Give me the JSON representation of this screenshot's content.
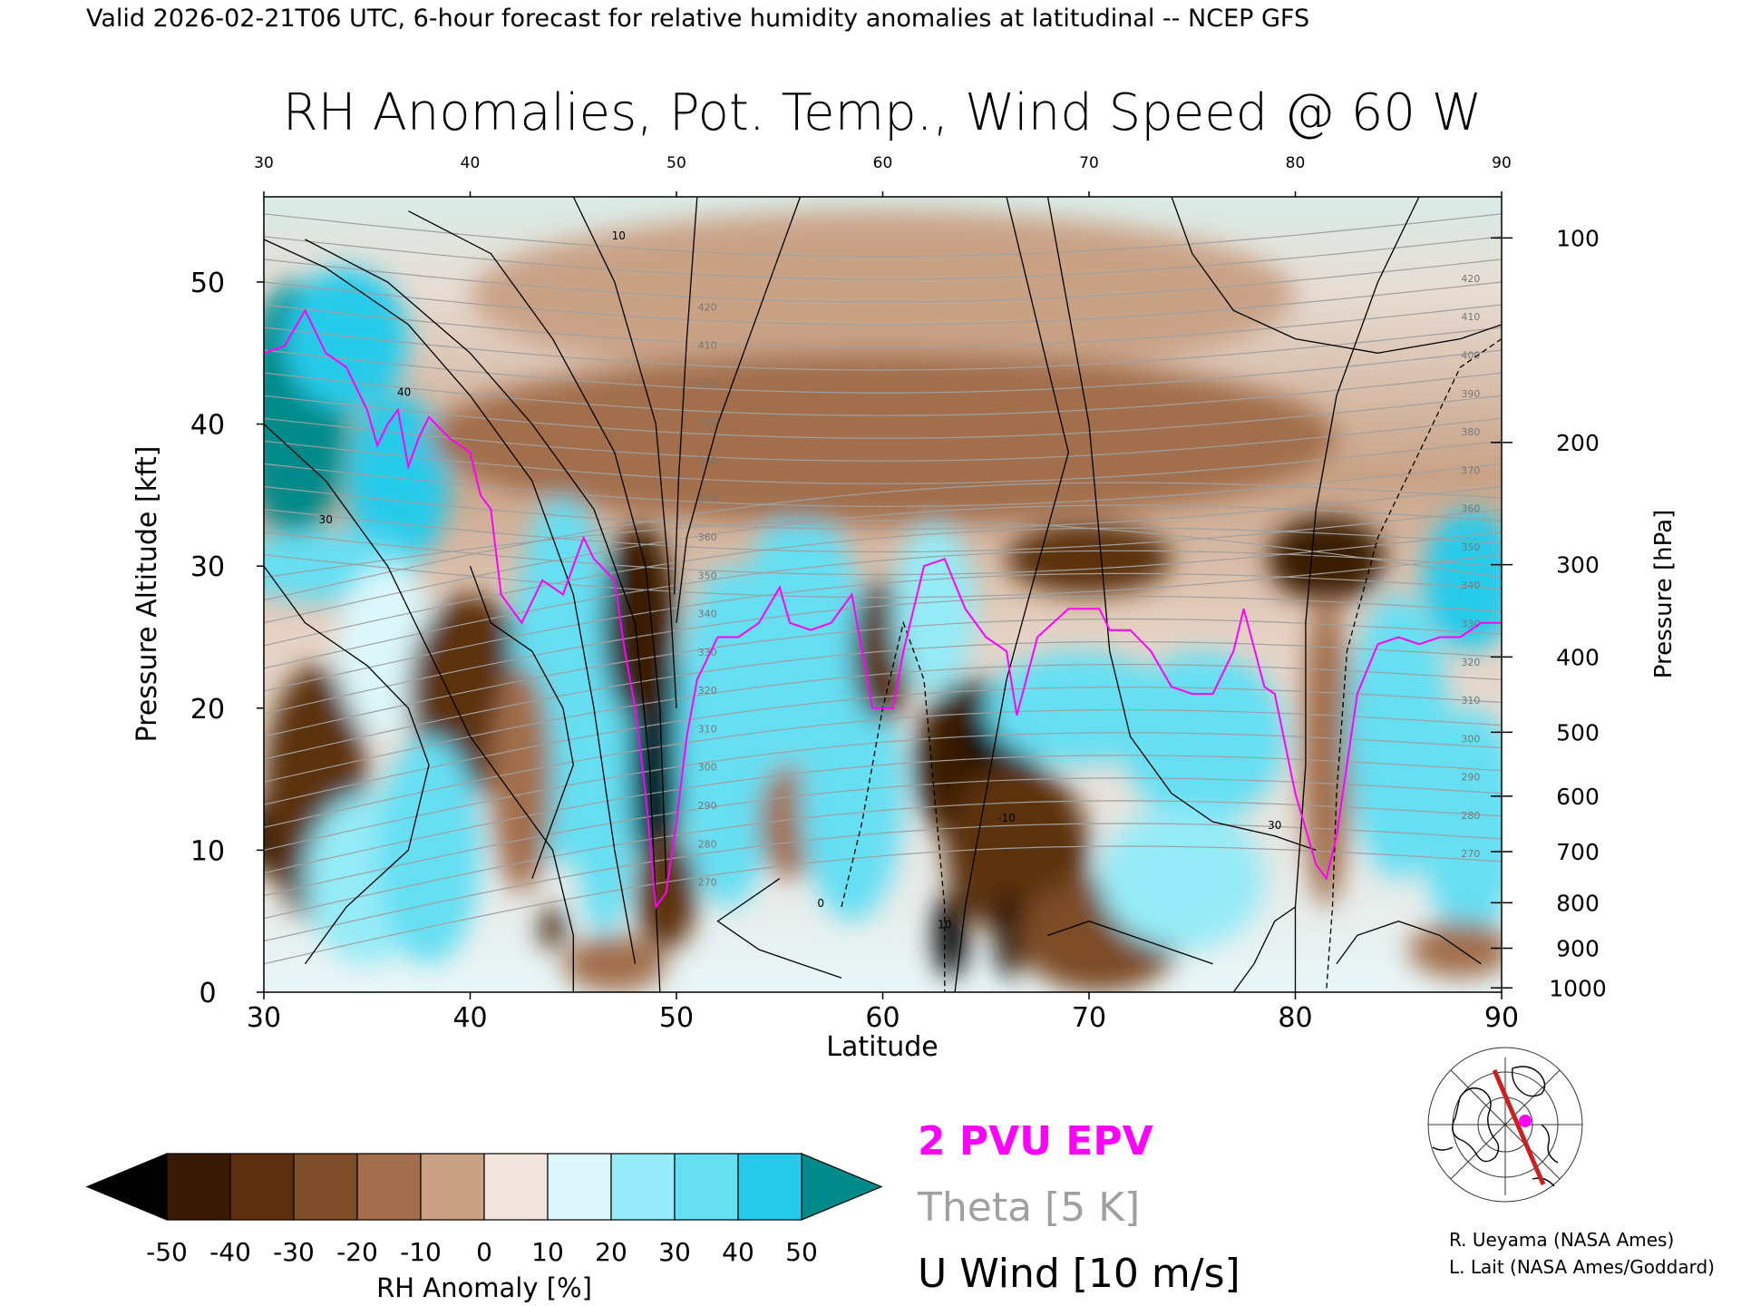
{
  "header": {
    "valid_line": "Valid 2026-02-21T06 UTC, 6-hour forecast for relative humidity anomalies at latitudinal -- NCEP GFS"
  },
  "chart_data": {
    "type": "heatmap",
    "title": "RH Anomalies, Pot. Temp., Wind Speed @ 60 W",
    "xlabel": "Latitude",
    "ylabel": "Pressure Altitude [kft]",
    "ylabel_right": "Pressure [hPa]",
    "xlim": [
      30,
      90
    ],
    "ylim": [
      0,
      56
    ],
    "x_ticks": [
      "30",
      "40",
      "50",
      "60",
      "70",
      "80",
      "90"
    ],
    "x_ticks_top": [
      "30",
      "40",
      "50",
      "60",
      "70",
      "80",
      "90"
    ],
    "y_ticks": [
      "0",
      "10",
      "20",
      "30",
      "40",
      "50"
    ],
    "pressure_ticks": [
      {
        "label": "100",
        "kft": 53.1
      },
      {
        "label": "200",
        "kft": 38.7
      },
      {
        "label": "300",
        "kft": 30.1
      },
      {
        "label": "400",
        "kft": 23.6
      },
      {
        "label": "500",
        "kft": 18.3
      },
      {
        "label": "600",
        "kft": 13.8
      },
      {
        "label": "700",
        "kft": 9.9
      },
      {
        "label": "800",
        "kft": 6.3
      },
      {
        "label": "900",
        "kft": 3.1
      },
      {
        "label": "1000",
        "kft": 0.3
      }
    ],
    "rh_anomaly_blobs": [
      {
        "lat": 31.5,
        "kft": 41,
        "v": 50,
        "rx": 2.5,
        "ry": 9
      },
      {
        "lat": 34,
        "kft": 46,
        "v": 45,
        "rx": 3,
        "ry": 5
      },
      {
        "lat": 36.5,
        "kft": 36,
        "v": 40,
        "rx": 2.5,
        "ry": 6
      },
      {
        "lat": 33,
        "kft": 30,
        "v": 38,
        "rx": 4.5,
        "ry": 2.5
      },
      {
        "lat": 31,
        "kft": 11,
        "v": -50,
        "rx": 2,
        "ry": 3
      },
      {
        "lat": 32.5,
        "kft": 14,
        "v": -35,
        "rx": 2.5,
        "ry": 9
      },
      {
        "lat": 36,
        "kft": 24,
        "v": 15,
        "rx": 2.5,
        "ry": 6
      },
      {
        "lat": 35,
        "kft": 8,
        "v": 22,
        "rx": 3,
        "ry": 6
      },
      {
        "lat": 40.5,
        "kft": 18.5,
        "v": -50,
        "rx": 2,
        "ry": 3
      },
      {
        "lat": 40,
        "kft": 21,
        "v": -35,
        "rx": 3,
        "ry": 7
      },
      {
        "lat": 38,
        "kft": 10,
        "v": 30,
        "rx": 2.5,
        "ry": 8
      },
      {
        "lat": 44.5,
        "kft": 22,
        "v": 35,
        "rx": 2.5,
        "ry": 13
      },
      {
        "lat": 46.5,
        "kft": 14,
        "v": 32,
        "rx": 1.5,
        "ry": 10
      },
      {
        "lat": 44,
        "kft": 4.5,
        "v": -45,
        "rx": 0.6,
        "ry": 1.5
      },
      {
        "lat": 42.5,
        "kft": 15,
        "v": -15,
        "rx": 1.5,
        "ry": 8
      },
      {
        "lat": 49,
        "kft": 17,
        "v": -55,
        "rx": 1.3,
        "ry": 10
      },
      {
        "lat": 48.2,
        "kft": 26,
        "v": -45,
        "rx": 1.8,
        "ry": 7
      },
      {
        "lat": 49.5,
        "kft": 7,
        "v": -40,
        "rx": 1.5,
        "ry": 4
      },
      {
        "lat": 47,
        "kft": 2,
        "v": -20,
        "rx": 2.5,
        "ry": 2
      },
      {
        "lat": 52.5,
        "kft": 18,
        "v": 35,
        "rx": 2.5,
        "ry": 12
      },
      {
        "lat": 56,
        "kft": 25,
        "v": 38,
        "rx": 3,
        "ry": 9
      },
      {
        "lat": 55.5,
        "kft": 12,
        "v": -15,
        "rx": 1.5,
        "ry": 4
      },
      {
        "lat": 58.5,
        "kft": 14,
        "v": 32,
        "rx": 2.5,
        "ry": 9
      },
      {
        "lat": 60,
        "kft": 24,
        "v": -35,
        "rx": 1.5,
        "ry": 5
      },
      {
        "lat": 62.5,
        "kft": 27,
        "v": 20,
        "rx": 2,
        "ry": 6
      },
      {
        "lat": 64.5,
        "kft": 16,
        "v": -45,
        "rx": 3,
        "ry": 6
      },
      {
        "lat": 64.7,
        "kft": 17.5,
        "v": -55,
        "rx": 0.7,
        "ry": 1.5
      },
      {
        "lat": 66.5,
        "kft": 10,
        "v": -40,
        "rx": 3.5,
        "ry": 6
      },
      {
        "lat": 63.3,
        "kft": 4,
        "v": -50,
        "rx": 0.8,
        "ry": 3
      },
      {
        "lat": 66.2,
        "kft": 4,
        "v": -50,
        "rx": 0.7,
        "ry": 3
      },
      {
        "lat": 70.5,
        "kft": 4,
        "v": -30,
        "rx": 4,
        "ry": 4
      },
      {
        "lat": 70,
        "kft": 30.5,
        "v": -35,
        "rx": 4,
        "ry": 2.5
      },
      {
        "lat": 69.5,
        "kft": 20,
        "v": 38,
        "rx": 4.5,
        "ry": 4
      },
      {
        "lat": 75.5,
        "kft": 18,
        "v": 35,
        "rx": 4,
        "ry": 6
      },
      {
        "lat": 74.5,
        "kft": 8,
        "v": 25,
        "rx": 4,
        "ry": 5
      },
      {
        "lat": 81.5,
        "kft": 30.5,
        "v": -45,
        "rx": 2.8,
        "ry": 3
      },
      {
        "lat": 81.5,
        "kft": 17,
        "v": -15,
        "rx": 1.2,
        "ry": 11
      },
      {
        "lat": 85,
        "kft": 18,
        "v": 38,
        "rx": 2.5,
        "ry": 10
      },
      {
        "lat": 88.5,
        "kft": 29,
        "v": 42,
        "rx": 2.3,
        "ry": 5
      },
      {
        "lat": 88.5,
        "kft": 12,
        "v": 30,
        "rx": 2.5,
        "ry": 8
      },
      {
        "lat": 88,
        "kft": 3,
        "v": -15,
        "rx": 2.5,
        "ry": 2
      },
      {
        "lat": 60,
        "kft": 49,
        "v": -8,
        "rx": 20,
        "ry": 6
      },
      {
        "lat": 60,
        "kft": 39,
        "v": -16,
        "rx": 22,
        "ry": 6
      }
    ],
    "epv_2pvu": [
      [
        30,
        45
      ],
      [
        31,
        45.5
      ],
      [
        32,
        48
      ],
      [
        33,
        45
      ],
      [
        34,
        44
      ],
      [
        35,
        41
      ],
      [
        35.5,
        38.5
      ],
      [
        36,
        40
      ],
      [
        36.5,
        41
      ],
      [
        37,
        37
      ],
      [
        37.5,
        39
      ],
      [
        38,
        40.5
      ],
      [
        39,
        39
      ],
      [
        40,
        38
      ],
      [
        40.5,
        35
      ],
      [
        41,
        34
      ],
      [
        41.5,
        28
      ],
      [
        42.5,
        26
      ],
      [
        43.5,
        29
      ],
      [
        44.5,
        28
      ],
      [
        45.5,
        32
      ],
      [
        46,
        30.5
      ],
      [
        47,
        29
      ],
      [
        47.5,
        24
      ],
      [
        48,
        20
      ],
      [
        48.5,
        14
      ],
      [
        49,
        6
      ],
      [
        49.5,
        7
      ],
      [
        50,
        12
      ],
      [
        50.5,
        18
      ],
      [
        51,
        22
      ],
      [
        52,
        25
      ],
      [
        53,
        25
      ],
      [
        54,
        26
      ],
      [
        55,
        28.5
      ],
      [
        55.5,
        26
      ],
      [
        56.5,
        25.5
      ],
      [
        57.5,
        26
      ],
      [
        58.5,
        28
      ],
      [
        59.5,
        20
      ],
      [
        60.5,
        20
      ],
      [
        61,
        24
      ],
      [
        62,
        30
      ],
      [
        63,
        30.5
      ],
      [
        64,
        27
      ],
      [
        65,
        25
      ],
      [
        66,
        24
      ],
      [
        66.5,
        19.5
      ],
      [
        67.5,
        25
      ],
      [
        69,
        27
      ],
      [
        70.5,
        27
      ],
      [
        71,
        25.5
      ],
      [
        72,
        25.5
      ],
      [
        73,
        24
      ],
      [
        74,
        21.5
      ],
      [
        75,
        21
      ],
      [
        76,
        21
      ],
      [
        77,
        24
      ],
      [
        77.5,
        27
      ],
      [
        78.5,
        21.5
      ],
      [
        79,
        21
      ],
      [
        80,
        14
      ],
      [
        81,
        9
      ],
      [
        81.5,
        8
      ],
      [
        82,
        11
      ],
      [
        83,
        21
      ],
      [
        84,
        24.5
      ],
      [
        85,
        25
      ],
      [
        86,
        24.5
      ],
      [
        87,
        25
      ],
      [
        88,
        25
      ],
      [
        89,
        26
      ],
      [
        90,
        26
      ]
    ],
    "theta_labels": [
      "420",
      "410",
      "400",
      "390",
      "380",
      "370",
      "360",
      "350",
      "340",
      "330",
      "320",
      "310",
      "300",
      "290",
      "280",
      "270"
    ],
    "u_wind_labels": [
      "10",
      "30",
      "40",
      "0",
      "-10"
    ]
  },
  "colorbar": {
    "label": "RH Anomaly [%]",
    "ticks": [
      "-50",
      "-40",
      "-30",
      "-20",
      "-10",
      "0",
      "10",
      "20",
      "30",
      "40",
      "50"
    ],
    "colors": [
      "#000000",
      "#3b1a05",
      "#5c300f",
      "#7d4c28",
      "#a26e4c",
      "#c9a286",
      "#f0e4dc",
      "#dcf7fb",
      "#95ebf7",
      "#66dff3",
      "#27cbea",
      "#0aa3c6",
      "#008a8a"
    ]
  },
  "legend": {
    "epv": "2 PVU EPV",
    "theta": "Theta [5 K]",
    "uwind": "U Wind [10 m/s]",
    "epv_color": "#ff00ff",
    "theta_color": "#a0a0a0",
    "uwind_color": "#000000"
  },
  "credits": {
    "line1": "R. Ueyama (NASA Ames)",
    "line2": "L. Lait (NASA Ames/Goddard)"
  },
  "inset_map": {
    "icon": "polar-map-icon",
    "section_color": "#cc1f1f",
    "marker_color": "#ff00ff"
  }
}
